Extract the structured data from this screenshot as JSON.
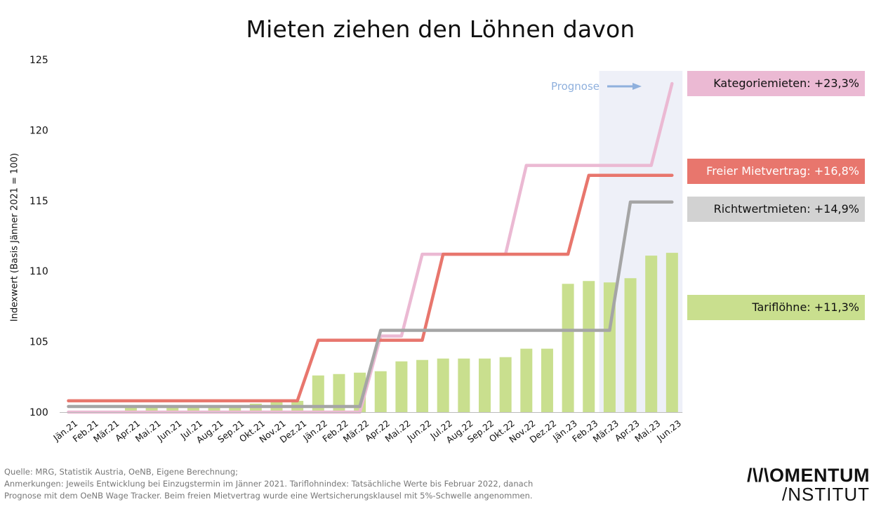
{
  "title": "Mieten ziehen den Löhnen davon",
  "footer": {
    "source": "Quelle: MRG, Statistik Austria, OeNB, Eigene Berechnung;",
    "notes_line1": "Anmerkungen: Jeweils Entwicklung bei Einzugstermin im Jänner 2021. Tariflohnindex: Tatsächliche Werte bis Februar 2022, danach",
    "notes_line2": "Prognose mit dem OeNB Wage Tracker. Beim freien Mietvertrag wurde eine Wertsicherungsklausel mit 5%-Schwelle angenommen."
  },
  "logo": {
    "line1": "/\\/\\OMENTUM",
    "line2": "/NSTITUT"
  },
  "colors": {
    "tarifloehne": "#c9df8e",
    "kategorie": "#ebb9d3",
    "freier": "#e8766d",
    "richtwert": "#a5a5a5",
    "prognose": "#8fb0dd",
    "prognose_band": "#eef0f8"
  },
  "callouts": {
    "kategorie": "Kategoriemieten: +23,3%",
    "freier": "Freier Mietvertrag: +16,8%",
    "richtwert": "Richtwertmieten: +14,9%",
    "tarif": "Tariflöhne: +11,3%"
  },
  "chart_data": {
    "type": "bar",
    "title": "Mieten ziehen den Löhnen davon",
    "xlabel": "",
    "ylabel": "Indexwert (Basis Jänner 2021 = 100)",
    "ylim": [
      100,
      125
    ],
    "yticks": [
      "100",
      "105",
      "110",
      "115",
      "120",
      "125"
    ],
    "grid": false,
    "prognose_label": "Prognose",
    "prognose_start": "Mär.23",
    "categories": [
      "Jän.21",
      "Feb.21",
      "Mär.21",
      "Apr.21",
      "Mai.21",
      "Jun.21",
      "Jul.21",
      "Aug.21",
      "Sep.21",
      "Okt.21",
      "Nov.21",
      "Dez.21",
      "Jän.22",
      "Feb.22",
      "Mär.22",
      "Apr.22",
      "Mai.22",
      "Jun.22",
      "Jul.22",
      "Aug.22",
      "Sep.22",
      "Okt.22",
      "Nov.22",
      "Dez.22",
      "Jän.23",
      "Feb.23",
      "Mär.23",
      "Apr.23",
      "Mai.23",
      "Jun.23"
    ],
    "bars": {
      "name": "Tariflöhne",
      "values": [
        100.0,
        100.0,
        100.0,
        100.4,
        100.4,
        100.4,
        100.4,
        100.4,
        100.5,
        100.6,
        100.7,
        100.8,
        102.6,
        102.7,
        102.8,
        102.9,
        103.6,
        103.7,
        103.8,
        103.8,
        103.8,
        103.9,
        104.5,
        104.5,
        109.1,
        109.3,
        109.2,
        109.5,
        111.1,
        111.3
      ]
    },
    "series": [
      {
        "name": "Kategoriemieten",
        "type": "line",
        "values": [
          100.0,
          100.0,
          100.0,
          100.0,
          100.0,
          100.0,
          100.0,
          100.0,
          100.0,
          100.0,
          100.0,
          100.0,
          100.0,
          100.0,
          100.0,
          105.4,
          105.4,
          111.2,
          111.2,
          111.2,
          111.2,
          111.2,
          117.5,
          117.5,
          117.5,
          117.5,
          117.5,
          117.5,
          117.5,
          123.3
        ]
      },
      {
        "name": "Freier Mietvertrag",
        "type": "line",
        "values": [
          100.8,
          100.8,
          100.8,
          100.8,
          100.8,
          100.8,
          100.8,
          100.8,
          100.8,
          100.8,
          100.8,
          100.8,
          105.1,
          105.1,
          105.1,
          105.1,
          105.1,
          105.1,
          111.2,
          111.2,
          111.2,
          111.2,
          111.2,
          111.2,
          111.2,
          116.8,
          116.8,
          116.8,
          116.8,
          116.8
        ]
      },
      {
        "name": "Richtwertmieten",
        "type": "line",
        "values": [
          100.4,
          100.4,
          100.4,
          100.4,
          100.4,
          100.4,
          100.4,
          100.4,
          100.4,
          100.4,
          100.4,
          100.4,
          100.4,
          100.4,
          100.4,
          105.8,
          105.8,
          105.8,
          105.8,
          105.8,
          105.8,
          105.8,
          105.8,
          105.8,
          105.8,
          105.8,
          105.8,
          114.9,
          114.9,
          114.9
        ]
      }
    ]
  }
}
